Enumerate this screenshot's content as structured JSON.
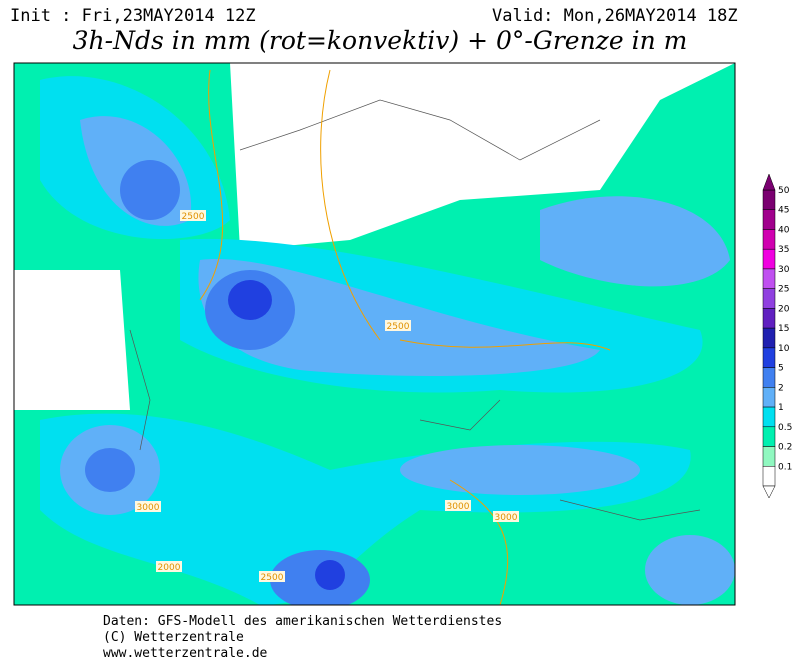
{
  "header": {
    "init": "Init : Fri,23MAY2014 12Z",
    "valid": "Valid: Mon,26MAY2014 18Z",
    "title": "3h-Nds in mm (rot=konvektiv) + 0°-Grenze in m"
  },
  "map": {
    "contour_labels": [
      "2500",
      "3000",
      "2500",
      "3000",
      "3000",
      "2000",
      "2500"
    ]
  },
  "legend": {
    "levels": [
      50,
      45,
      40,
      35,
      30,
      25,
      20,
      15,
      10,
      5,
      2,
      1,
      0.5,
      0.2,
      0.1
    ],
    "colors": [
      "#7a0070",
      "#a0008c",
      "#d000b0",
      "#f000e0",
      "#c050f0",
      "#9040e0",
      "#6020c0",
      "#2020b0",
      "#2040e0",
      "#4080f0",
      "#60b0f8",
      "#00e0f0",
      "#00f0b0",
      "#90f8c0",
      "#ffffff"
    ]
  },
  "footer": {
    "line1": "Daten: GFS-Modell des amerikanischen Wetterdienstes",
    "line2": "(C) Wetterzentrale",
    "line3": "www.wetterzentrale.de"
  }
}
